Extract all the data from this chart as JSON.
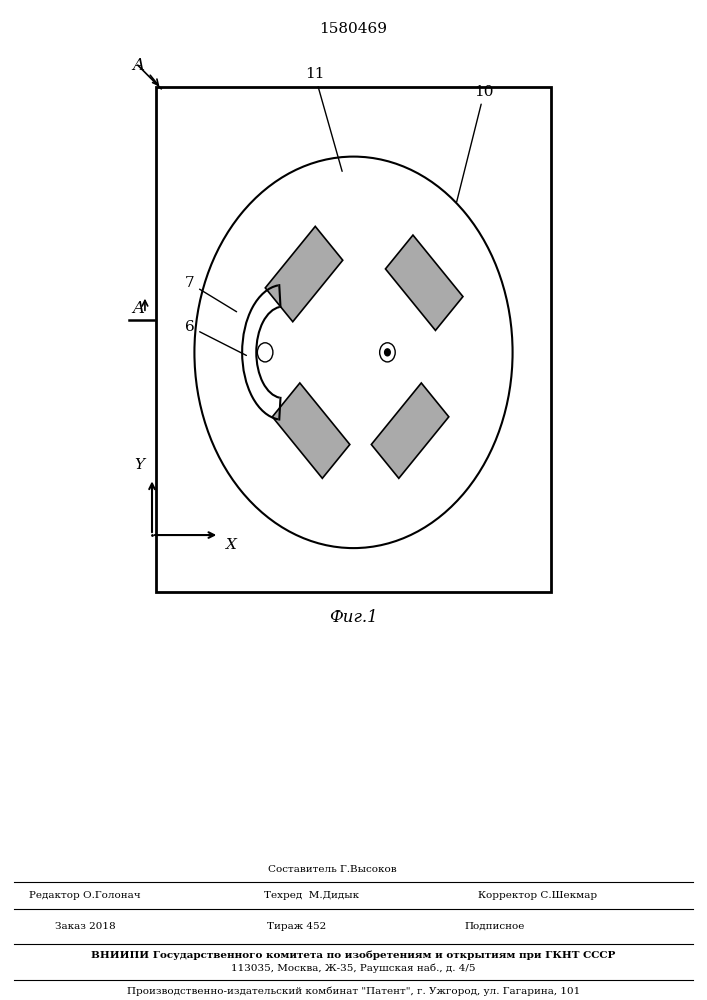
{
  "title": "1580469",
  "bg_color": "#ffffff",
  "footer": {
    "sestavitel": "Составитель Г.Высоков",
    "redaktor": "Редактор О.Голонач",
    "tehred": "Техред  М.Дидык",
    "korrektor": "Корректор С.Шекмар",
    "zakaz": "Заказ 2018",
    "tirazh": "Тираж 452",
    "podpisnoe": "Подписное",
    "vniipи_line1": "ВНИИПИ Государственного комитета по изобретениям и открытиям при ГКНТ СССР",
    "vniipи_line2": "113035, Москва, Ж-35, Раушская наб., д. 4/5",
    "proizv": "Производственно-издательский комбинат \"Патент\", г. Ужгород, ул. Гагарина, 101"
  }
}
